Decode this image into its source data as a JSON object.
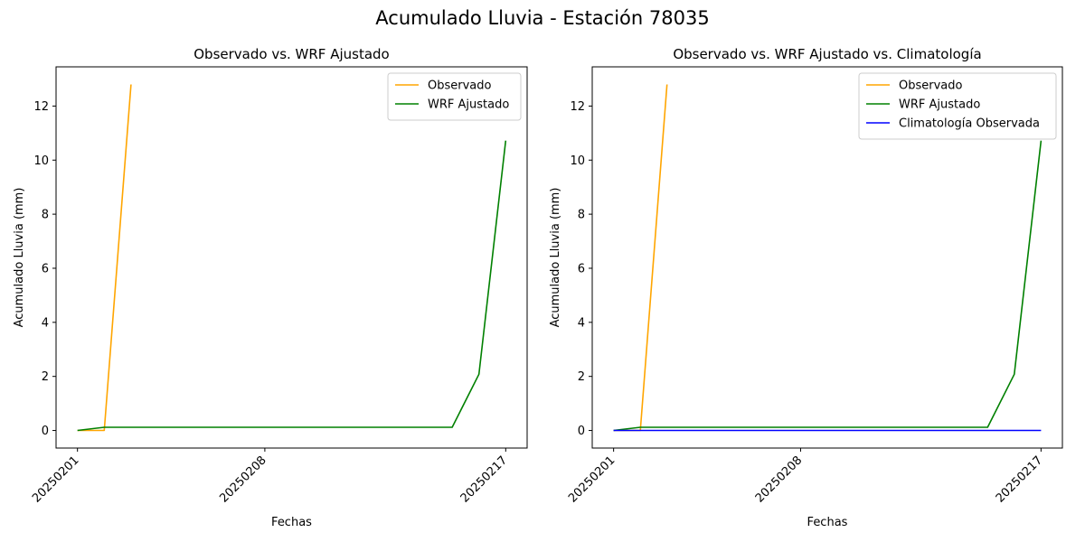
{
  "suptitle": "Acumulado Lluvia - Estación 78035",
  "chart_data": [
    {
      "type": "line",
      "title": "Observado vs. WRF Ajustado",
      "xlabel": "Fechas",
      "ylabel": "Acumulado Lluvia (mm)",
      "x_ticks": [
        "20250201",
        "20250208",
        "20250217"
      ],
      "ylim": [
        -0.65,
        13.45
      ],
      "y_ticks": [
        0,
        2,
        4,
        6,
        8,
        10,
        12
      ],
      "legend_position": "top-right",
      "series": [
        {
          "name": "Observado",
          "color": "#ffa500",
          "points": [
            [
              "20250201",
              0
            ],
            [
              "20250202",
              0
            ],
            [
              "20250203",
              12.8
            ]
          ]
        },
        {
          "name": "WRF Ajustado",
          "color": "#008000",
          "points": [
            [
              "20250201",
              0
            ],
            [
              "20250202",
              0.12
            ],
            [
              "20250209",
              0.12
            ],
            [
              "20250215",
              0.12
            ],
            [
              "20250216",
              2.08
            ],
            [
              "20250217",
              10.72
            ]
          ]
        }
      ]
    },
    {
      "type": "line",
      "title": "Observado vs. WRF Ajustado vs. Climatología",
      "xlabel": "Fechas",
      "ylabel": "Acumulado Lluvia (mm)",
      "x_ticks": [
        "20250201",
        "20250208",
        "20250217"
      ],
      "ylim": [
        -0.65,
        13.45
      ],
      "y_ticks": [
        0,
        2,
        4,
        6,
        8,
        10,
        12
      ],
      "legend_position": "top-right",
      "series": [
        {
          "name": "Observado",
          "color": "#ffa500",
          "points": [
            [
              "20250201",
              0
            ],
            [
              "20250202",
              0
            ],
            [
              "20250203",
              12.8
            ]
          ]
        },
        {
          "name": "WRF Ajustado",
          "color": "#008000",
          "points": [
            [
              "20250201",
              0
            ],
            [
              "20250202",
              0.12
            ],
            [
              "20250209",
              0.12
            ],
            [
              "20250215",
              0.12
            ],
            [
              "20250216",
              2.08
            ],
            [
              "20250217",
              10.72
            ]
          ]
        },
        {
          "name": "Climatología Observada",
          "color": "#0000ff",
          "points": [
            [
              "20250201",
              0
            ],
            [
              "20250202",
              0
            ],
            [
              "20250209",
              0
            ],
            [
              "20250215",
              0
            ],
            [
              "20250216",
              0
            ],
            [
              "20250217",
              0
            ]
          ]
        }
      ]
    }
  ]
}
